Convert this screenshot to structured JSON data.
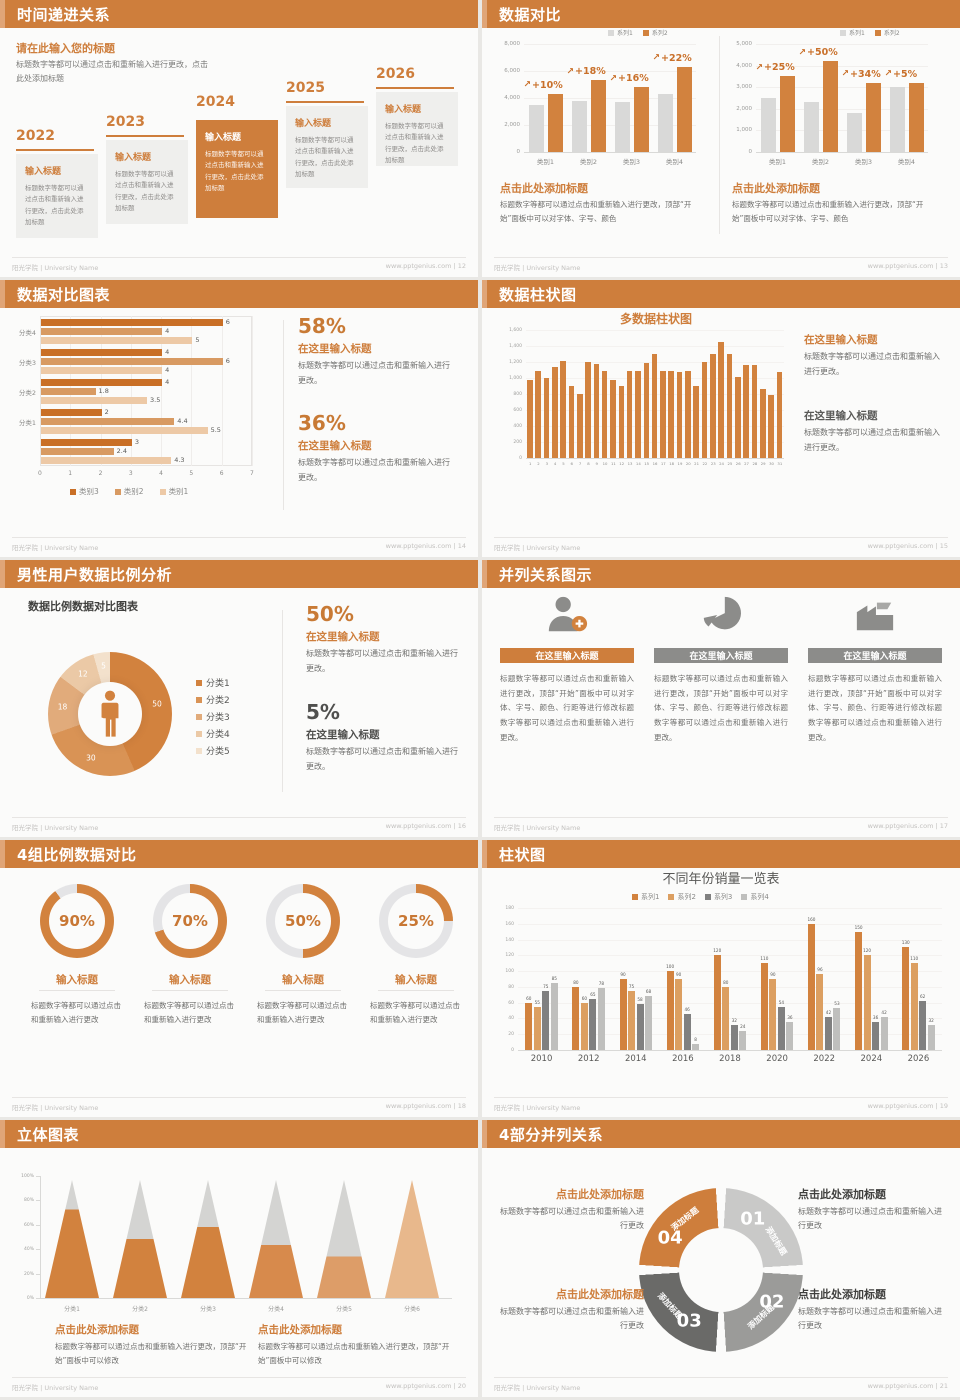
{
  "footer_left": "阳光学院 | University Name",
  "colors": {
    "accent": "#ce7e3c",
    "accent_text": "#c9742e",
    "bar_orange": "#d2823e",
    "bar_light_orange": "#dc9f61",
    "bar_pale_orange": "#edc9a6",
    "bar_dark_orange": "#c96f26",
    "bar_gray": "#d9d9d8",
    "bar_dark_gray": "#808080",
    "bar_light_gray": "#bfbfbd",
    "title_gray": "#595957",
    "body_gray": "#6e6e6c"
  },
  "chart_data": [
    {
      "type": "bar",
      "legend": [
        "系列1",
        "系列2"
      ],
      "panels": [
        {
          "yticks": [
            "8,000",
            "6,000",
            "4,000",
            "2,000",
            "0"
          ],
          "ymax": 8000,
          "categories": [
            "类别1",
            "类别2",
            "类别3",
            "类别4"
          ],
          "series": [
            {
              "name": "系列1",
              "values": [
                3500,
                3800,
                3700,
                4300
              ]
            },
            {
              "name": "系列2",
              "values": [
                4300,
                5300,
                4800,
                6300
              ]
            }
          ],
          "growth_labels": [
            "+10%",
            "+18%",
            "+16%",
            "+22%"
          ]
        },
        {
          "yticks": [
            "5,000",
            "4,000",
            "3,000",
            "2,000",
            "1,000",
            "0"
          ],
          "ymax": 5000,
          "categories": [
            "类别1",
            "类别2",
            "类别3",
            "类别4"
          ],
          "series": [
            {
              "name": "系列1",
              "values": [
                2500,
                2300,
                1800,
                3000
              ]
            },
            {
              "name": "系列2",
              "values": [
                3500,
                4200,
                3200,
                3200
              ]
            }
          ],
          "growth_labels": [
            "+25%",
            "+50%",
            "+34%",
            "+5%"
          ]
        }
      ]
    },
    {
      "type": "bar-horizontal",
      "xticks": [
        "0",
        "1",
        "2",
        "3",
        "4",
        "5",
        "6",
        "7"
      ],
      "xmax": 7,
      "legend": [
        "类别3",
        "类别2",
        "类别1"
      ],
      "groups": [
        {
          "label": "分类4",
          "values": [
            6,
            4,
            5
          ]
        },
        {
          "label": "分类3",
          "values": [
            4,
            6,
            4
          ]
        },
        {
          "label": "分类2",
          "values": [
            4,
            1.8,
            3.5
          ]
        },
        {
          "label": "分类1",
          "values": [
            2,
            4.4,
            5.5
          ]
        },
        {
          "label": "",
          "values": [
            3,
            2.4,
            4.3
          ]
        }
      ]
    },
    {
      "type": "bar",
      "title": "多数据柱状图",
      "ymax": 1600,
      "yticks": [
        "1,600",
        "1,400",
        "1,200",
        "1,000",
        "800",
        "600",
        "400",
        "200",
        "0"
      ],
      "xlabels": [
        "1",
        "2",
        "3",
        "4",
        "5",
        "6",
        "7",
        "8",
        "9",
        "10",
        "11",
        "12",
        "13",
        "14",
        "15",
        "16",
        "17",
        "18",
        "19",
        "20",
        "21",
        "22",
        "23",
        "24",
        "25",
        "26",
        "27",
        "28",
        "29",
        "30",
        "31"
      ],
      "values": [
        980,
        1090,
        1000,
        1140,
        1210,
        900,
        800,
        1200,
        1180,
        1090,
        970,
        900,
        1090,
        1090,
        1190,
        1300,
        1090,
        1090,
        1080,
        1090,
        900,
        1200,
        1300,
        1450,
        1300,
        1010,
        1160,
        1160,
        860,
        790,
        1070
      ]
    },
    {
      "type": "pie",
      "title": "数据比例数据对比图表",
      "slices": [
        {
          "label": "分类1",
          "value": 50,
          "color": "#d2823e"
        },
        {
          "label": "分类2",
          "value": 30,
          "color": "#d99355"
        },
        {
          "label": "分类3",
          "value": 18,
          "color": "#e1ab7b"
        },
        {
          "label": "分类4",
          "value": 12,
          "color": "#ebc9a6"
        },
        {
          "label": "分类5",
          "value": 5,
          "color": "#f3e1cc"
        }
      ]
    },
    {
      "type": "progress-donut",
      "values": [
        90,
        70,
        50,
        25
      ],
      "labels": [
        "90%",
        "70%",
        "50%",
        "25%"
      ]
    },
    {
      "type": "bar-grouped",
      "title": "不同年份销量一览表",
      "ymax": 180,
      "yticks": [
        "180",
        "160",
        "140",
        "120",
        "100",
        "80",
        "60",
        "40",
        "20",
        "0"
      ],
      "categories": [
        "2010",
        "2012",
        "2014",
        "2016",
        "2018",
        "2020",
        "2022",
        "2024",
        "2026"
      ],
      "series": [
        {
          "name": "系列1",
          "color": "#d2823e",
          "values": [
            60,
            80,
            90,
            100,
            120,
            110,
            160,
            150,
            130
          ]
        },
        {
          "name": "系列2",
          "color": "#dc9f61",
          "values": [
            55,
            60,
            75,
            90,
            80,
            90,
            96,
            120,
            110
          ]
        },
        {
          "name": "系列3",
          "color": "#808080",
          "values": [
            75,
            65,
            58,
            46,
            32,
            54,
            42,
            36,
            62
          ]
        },
        {
          "name": "系列4",
          "color": "#bfbfbd",
          "values": [
            85,
            78,
            68,
            8,
            24,
            36,
            53,
            42,
            32
          ]
        }
      ]
    },
    {
      "type": "cone",
      "yticks": [
        "100%",
        "80%",
        "60%",
        "40%",
        "20%",
        "0%"
      ],
      "categories": [
        "分类1",
        "分类2",
        "分类3",
        "分类4",
        "分类5",
        "分类6"
      ],
      "fill_percent": [
        75,
        50,
        60,
        45,
        35,
        100
      ],
      "fill_colors": [
        "#d2823e",
        "#d2823e",
        "#d2823e",
        "#d78a4c",
        "#dd9d68",
        "#e8b88c"
      ]
    }
  ],
  "slides": [
    {
      "title": "时间递进关系",
      "footer_right": "www.pptgenius.com | 12",
      "heading": "请在此输入您的标题",
      "heading_body": "标题数字等都可以通过点击和重新输入进行更改，点击此处添加标题",
      "item_title": "输入标题",
      "item_body": "标题数字等都可以通过点击和重新输入进行更改，点击此处添加标题",
      "years": [
        "2022",
        "2023",
        "2024",
        "2025",
        "2026"
      ],
      "highlight_year": "2024"
    },
    {
      "title": "数据对比",
      "footer_right": "www.pptgenius.com | 13",
      "chart_ref": 0,
      "caption_title": "点击此处添加标题",
      "caption_body": "标题数字等都可以通过点击和重新输入进行更改，顶部“开始”面板中可以对字体、字号、颜色"
    },
    {
      "title": "数据对比图表",
      "footer_right": "www.pptgenius.com | 14",
      "chart_ref": 1,
      "stats": [
        {
          "pct": "58%",
          "title": "在这里输入标题",
          "body": "标题数字等都可以通过点击和重新输入进行更改。"
        },
        {
          "pct": "36%",
          "title": "在这里输入标题",
          "body": "标题数字等都可以通过点击和重新输入进行更改。"
        }
      ]
    },
    {
      "title": "数据柱状图",
      "footer_right": "www.pptgenius.com | 15",
      "chart_ref": 2,
      "blocks": [
        {
          "title": "在这里输入标题",
          "body": "标题数字等都可以通过点击和重新输入进行更改。",
          "accent": true
        },
        {
          "title": "在这里输入标题",
          "body": "标题数字等都可以通过点击和重新输入进行更改。",
          "accent": false
        }
      ]
    },
    {
      "title": "男性用户数据比例分析",
      "footer_right": "www.pptgenius.com | 16",
      "chart_ref": 3,
      "stats": [
        {
          "pct": "50%",
          "title": "在这里输入标题",
          "body": "标题数字等都可以通过点击和重新输入进行更改。",
          "accent": true
        },
        {
          "pct": "5%",
          "title": "在这里输入标题",
          "body": "标题数字等都可以通过点击和重新输入进行更改。",
          "accent": false
        }
      ]
    },
    {
      "title": "并列关系图示",
      "footer_right": "www.pptgenius.com | 17",
      "col_title": "在这里输入标题",
      "col_body": "标题数字等都可以通过点击和重新输入进行更改，顶部“开始”面板中可以对字体、字号、颜色、行距等进行修改标题数字等都可以通过点击和重新输入进行更改。",
      "cols": [
        {
          "icon": "person-add-icon",
          "accent": true
        },
        {
          "icon": "pie-3d-icon",
          "accent": false
        },
        {
          "icon": "building-icon",
          "accent": false
        }
      ]
    },
    {
      "title": "4组比例数据对比",
      "footer_right": "www.pptgenius.com | 18",
      "chart_ref": 4,
      "item_title": "输入标题",
      "item_body": "标题数字等都可以通过点击和重新输入进行更改"
    },
    {
      "title": "柱状图",
      "footer_right": "www.pptgenius.com | 19",
      "chart_ref": 5
    },
    {
      "title": "立体图表",
      "footer_right": "www.pptgenius.com | 20",
      "chart_ref": 6,
      "caption_title": "点击此处添加标题",
      "caption_body": "标题数字等都可以通过点击和重新输入进行更改，顶部“开始”面板中可以修改"
    },
    {
      "title": "4部分并列关系",
      "footer_right": "www.pptgenius.com | 21",
      "segments": [
        {
          "num": "01",
          "label": "添加标题",
          "color": "#c9c9c8"
        },
        {
          "num": "02",
          "label": "添加标题",
          "color": "#9b9b99"
        },
        {
          "num": "03",
          "label": "添加标题",
          "color": "#6a6a68"
        },
        {
          "num": "04",
          "label": "添加标题",
          "color": "#ce7e3c"
        }
      ],
      "blocks": [
        {
          "title": "点击此处添加标题",
          "body": "标题数字等都可以通过点击和重新输入进行更改",
          "accent": true
        },
        {
          "title": "点击此处添加标题",
          "body": "标题数字等都可以通过点击和重新输入进行更改",
          "accent": false
        },
        {
          "title": "点击此处添加标题",
          "body": "标题数字等都可以通过点击和重新输入进行更改",
          "accent": true
        },
        {
          "title": "点击此处添加标题",
          "body": "标题数字等都可以通过点击和重新输入进行更改",
          "accent": false
        }
      ]
    }
  ]
}
